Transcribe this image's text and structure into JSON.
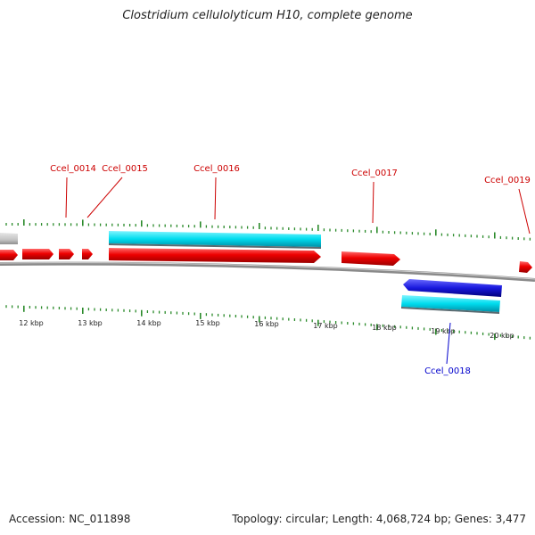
{
  "title": "Clostridium cellulolyticum H10, complete genome",
  "footer": {
    "accession": "Accession: NC_011898",
    "summary": "Topology: circular; Length: 4,068,724 bp; Genes: 3,477"
  },
  "colors": {
    "forward_cds": "#ee0000",
    "reverse_cds": "#1818dd",
    "forward_feature": "#00ddee",
    "reverse_feature": "#00ccee",
    "gray_feature": "#c4c4c4",
    "backbone": "#8a8a8a",
    "tick": "#2a8a2a",
    "label_forward": "#cc0000",
    "label_reverse": "#0000cc"
  },
  "scale_labels": [
    "12 kbp",
    "13 kbp",
    "14 kbp",
    "15 kbp",
    "16 kbp",
    "17 kbp",
    "18 kbp",
    "19 kbp",
    "20 kbp"
  ],
  "gene_labels": [
    {
      "text": "Ccel_0014",
      "strand": "forward"
    },
    {
      "text": "Ccel_0015",
      "strand": "forward"
    },
    {
      "text": "Ccel_0016",
      "strand": "forward"
    },
    {
      "text": "Ccel_0017",
      "strand": "forward"
    },
    {
      "text": "Ccel_0019",
      "strand": "forward"
    },
    {
      "text": "Ccel_0018",
      "strand": "reverse"
    }
  ]
}
